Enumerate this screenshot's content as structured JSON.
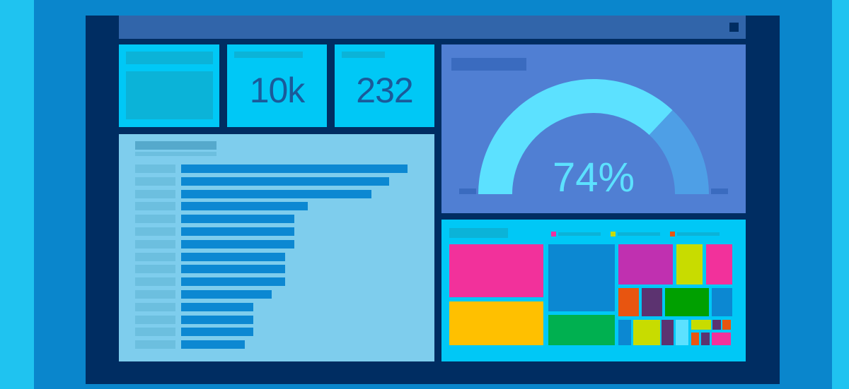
{
  "kpis": {
    "visits": "10k",
    "sessions": "232"
  },
  "gauge": {
    "value_label": "74%",
    "percent": 74,
    "track_color": "#5ce1ff",
    "arc_color": "#4e9fe6",
    "panel_color": "#507fd3"
  },
  "bar_chart": {
    "values": [
      100,
      92,
      84,
      56,
      50,
      50,
      50,
      46,
      46,
      46,
      40,
      32,
      32,
      32,
      28
    ],
    "bar_color": "#0c88d2",
    "label_color": "#6cbfdf"
  },
  "treemap": {
    "legend": [
      {
        "color": "#f030a0"
      },
      {
        "color": "#c8dc00"
      },
      {
        "color": "#e85510"
      }
    ],
    "tiles": [
      {
        "color": "#f2319b"
      },
      {
        "color": "#ffc000"
      },
      {
        "color": "#0c88d2"
      },
      {
        "color": "#00b050"
      },
      {
        "color": "#c030b0"
      },
      {
        "color": "#c8dc00"
      },
      {
        "color": "#f2319b"
      },
      {
        "color": "#e85510"
      },
      {
        "color": "#5c3370"
      },
      {
        "color": "#00a000"
      },
      {
        "color": "#0c88d2"
      },
      {
        "color": "#0c88d2"
      },
      {
        "color": "#c8dc00"
      },
      {
        "color": "#5c3370"
      },
      {
        "color": "#5ce1ff"
      },
      {
        "color": "#c8dc00"
      },
      {
        "color": "#5c3370"
      },
      {
        "color": "#e85510"
      },
      {
        "color": "#e85510"
      },
      {
        "color": "#5c3370"
      },
      {
        "color": "#f2319b"
      }
    ]
  },
  "colors": {
    "background": "#1fc3f0",
    "frame": "#0a86cc",
    "screen": "#002d62",
    "topbar": "#3165aa",
    "kpi": "#00c8f6",
    "bar_panel": "#7ecded"
  }
}
